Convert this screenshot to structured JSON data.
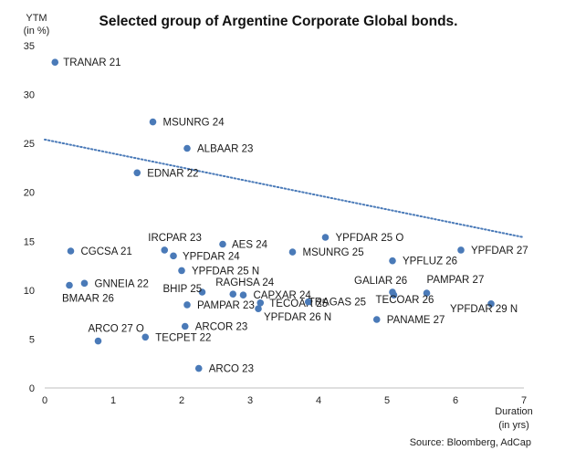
{
  "chart_data": {
    "type": "scatter",
    "title": "Selected group of Argentine Corporate Global bonds.",
    "ylabel_line1": "YTM",
    "ylabel_line2": "(in %)",
    "xlabel_line1": "Duration",
    "xlabel_line2": "(in yrs)",
    "source": "Source: Bloomberg, AdCap",
    "xlim": [
      0,
      7
    ],
    "ylim": [
      0,
      35
    ],
    "xticks": [
      0,
      1,
      2,
      3,
      4,
      5,
      6,
      7
    ],
    "yticks": [
      0,
      5,
      10,
      15,
      20,
      25,
      30,
      35
    ],
    "marker_color": "#4a7ab8",
    "trendline": {
      "color": "#4a7ab8",
      "style": "dotted",
      "x": [
        0,
        7
      ],
      "y": [
        25.4,
        15.4
      ]
    },
    "points": [
      {
        "label": "TRANAR 21",
        "x": 0.15,
        "y": 33.3
      },
      {
        "label": "MSUNRG 24",
        "x": 1.58,
        "y": 27.2
      },
      {
        "label": "ALBAAR 23",
        "x": 2.08,
        "y": 24.5
      },
      {
        "label": "EDNAR 22",
        "x": 1.35,
        "y": 22.0
      },
      {
        "label": "YPFDAR 25 O",
        "x": 4.1,
        "y": 15.4
      },
      {
        "label": "IRCPAR 23",
        "x": 1.75,
        "y": 14.1
      },
      {
        "label": "AES 24",
        "x": 2.6,
        "y": 14.7
      },
      {
        "label": "CGCSA 21",
        "x": 0.38,
        "y": 14.0
      },
      {
        "label": "YPFDAR 24",
        "x": 1.88,
        "y": 13.5
      },
      {
        "label": "MSUNRG 25",
        "x": 3.62,
        "y": 13.9
      },
      {
        "label": "YPFDAR 27",
        "x": 6.08,
        "y": 14.1
      },
      {
        "label": "YPFLUZ 26",
        "x": 5.08,
        "y": 13.0
      },
      {
        "label": "YPFDAR 25 N",
        "x": 2.0,
        "y": 12.0
      },
      {
        "label": "GNNEIA 22",
        "x": 0.58,
        "y": 10.7
      },
      {
        "label": "BMAAR 26",
        "x": 0.36,
        "y": 10.5
      },
      {
        "label": "BHIP 25",
        "x": 2.3,
        "y": 9.8
      },
      {
        "label": "RAGHSA 24",
        "x": 2.75,
        "y": 9.6
      },
      {
        "label": "CAPXAR 24",
        "x": 2.9,
        "y": 9.5
      },
      {
        "label": "PAMPAR 27",
        "x": 5.58,
        "y": 9.7
      },
      {
        "label": "GALIAR 26",
        "x": 5.08,
        "y": 9.8
      },
      {
        "label": "TECOAR 26",
        "x": 5.1,
        "y": 9.5
      },
      {
        "label": "PAMPAR 23",
        "x": 2.08,
        "y": 8.5
      },
      {
        "label": "TECOAR 25",
        "x": 3.15,
        "y": 8.7
      },
      {
        "label": "TRAGAS 25",
        "x": 3.85,
        "y": 8.8
      },
      {
        "label": "YPFDAR 26 N",
        "x": 3.12,
        "y": 8.1
      },
      {
        "label": "YPFDAR 29 N",
        "x": 6.52,
        "y": 8.6
      },
      {
        "label": "PANAME 27",
        "x": 4.85,
        "y": 7.0
      },
      {
        "label": "ARCOR 23",
        "x": 2.05,
        "y": 6.3
      },
      {
        "label": "ARCO 27 O",
        "x": 0.78,
        "y": 4.8
      },
      {
        "label": "TECPET 22",
        "x": 1.47,
        "y": 5.2
      },
      {
        "label": "ARCO 23",
        "x": 2.25,
        "y": 2.0
      }
    ]
  }
}
